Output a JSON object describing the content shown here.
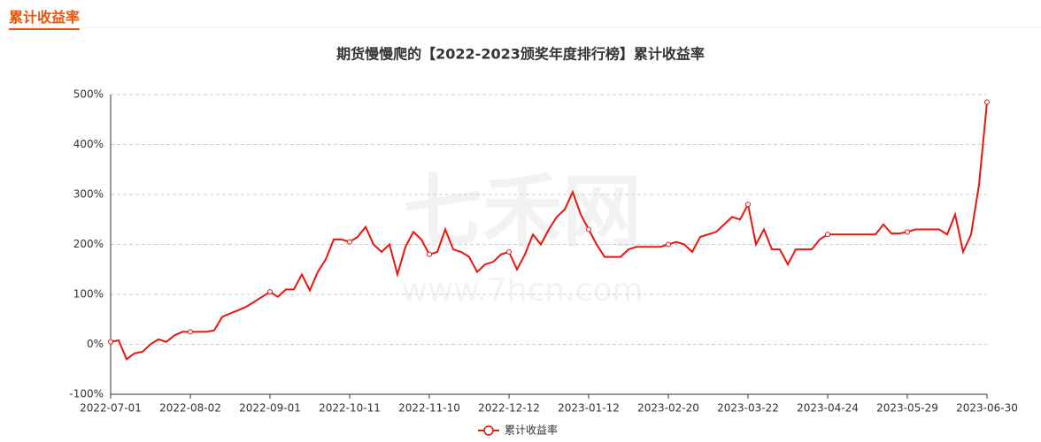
{
  "header": "累计收益率",
  "watermark": {
    "name": "七禾网",
    "url": "www.7hcn.com"
  },
  "chart_data": {
    "type": "line",
    "title": "期货慢慢爬的【2022-2023颁奖年度排行榜】累计收益率",
    "categories": [
      "2022-07-01",
      null,
      null,
      null,
      null,
      null,
      null,
      null,
      null,
      null,
      "2022-08-02",
      null,
      null,
      null,
      null,
      null,
      null,
      null,
      null,
      null,
      "2022-09-01",
      null,
      null,
      null,
      null,
      null,
      null,
      null,
      null,
      null,
      "2022-10-11",
      null,
      null,
      null,
      null,
      null,
      null,
      null,
      null,
      null,
      "2022-11-10",
      null,
      null,
      null,
      null,
      null,
      null,
      null,
      null,
      null,
      "2022-12-12",
      null,
      null,
      null,
      null,
      null,
      null,
      null,
      null,
      null,
      "2023-01-12",
      null,
      null,
      null,
      null,
      null,
      null,
      null,
      null,
      null,
      "2023-02-20",
      null,
      null,
      null,
      null,
      null,
      null,
      null,
      null,
      null,
      "2023-03-22",
      null,
      null,
      null,
      null,
      null,
      null,
      null,
      null,
      null,
      "2023-04-24",
      null,
      null,
      null,
      null,
      null,
      null,
      null,
      null,
      null,
      "2023-05-29",
      null,
      null,
      null,
      null,
      null,
      null,
      null,
      null,
      null,
      "2023-06-30"
    ],
    "series": [
      {
        "name": "累计收益率",
        "color": "#e8160c",
        "values": [
          5,
          8,
          -30,
          -18,
          -15,
          0,
          10,
          5,
          18,
          25,
          25,
          25,
          25,
          28,
          55,
          62,
          68,
          75,
          85,
          95,
          105,
          95,
          110,
          110,
          140,
          108,
          145,
          170,
          210,
          210,
          205,
          215,
          235,
          200,
          185,
          200,
          140,
          195,
          225,
          210,
          180,
          185,
          230,
          190,
          185,
          175,
          145,
          160,
          165,
          180,
          185,
          150,
          180,
          220,
          200,
          230,
          255,
          270,
          305,
          260,
          230,
          200,
          175,
          175,
          175,
          190,
          195,
          195,
          195,
          195,
          200,
          205,
          200,
          185,
          215,
          220,
          225,
          240,
          255,
          250,
          280,
          200,
          230,
          190,
          190,
          160,
          190,
          190,
          190,
          210,
          220,
          220,
          220,
          220,
          220,
          220,
          220,
          240,
          222,
          222,
          225,
          230,
          230,
          230,
          230,
          220,
          260,
          185,
          220,
          320,
          485
        ]
      }
    ],
    "ylim": [
      -100,
      500
    ],
    "yticks": [
      {
        "value": -100,
        "label": "-100%"
      },
      {
        "value": 0,
        "label": "0%"
      },
      {
        "value": 100,
        "label": "100%"
      },
      {
        "value": 200,
        "label": "200%"
      },
      {
        "value": 300,
        "label": "300%"
      },
      {
        "value": 400,
        "label": "400%"
      },
      {
        "value": 500,
        "label": "500%"
      }
    ],
    "grid": true
  }
}
